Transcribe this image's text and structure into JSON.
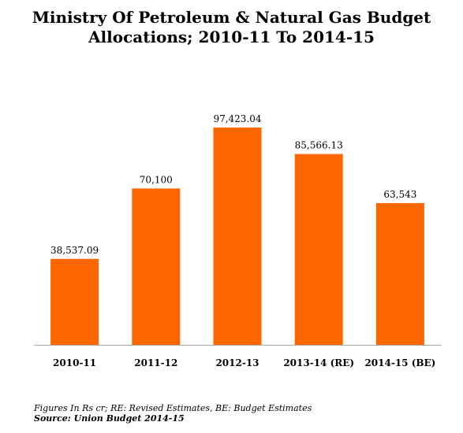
{
  "chart_data": {
    "type": "bar",
    "title_lines": [
      "Ministry Of Petroleum & Natural Gas Budget",
      "Allocations; 2010-11 To 2014-15"
    ],
    "categories": [
      "2010-11",
      "2011-12",
      "2012-13",
      "2013-14 (RE)",
      "2014-15 (BE)"
    ],
    "values": [
      38537.09,
      70100,
      97423.04,
      85566.13,
      63543
    ],
    "value_labels": [
      "38,537.09",
      "70,100",
      "97,423.04",
      "85,566.13",
      "63,543"
    ],
    "ylim": [
      0,
      120000
    ],
    "grid": false,
    "bar_color": "#ff6600",
    "note": "Figures In Rs cr; RE: Revised Estimates, BE: Budget Estimates",
    "source": "Source: Union Budget 2014-15"
  }
}
